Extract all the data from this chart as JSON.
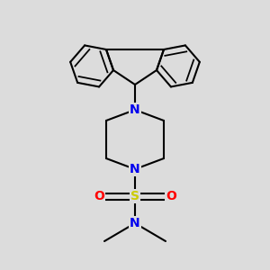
{
  "bg_color": "#dcdcdc",
  "atom_colors": {
    "N": "#0000ee",
    "S": "#cccc00",
    "O": "#ff0000",
    "C": "#000000"
  },
  "bond_color": "#000000",
  "lw": 1.5,
  "scale": 1.0
}
